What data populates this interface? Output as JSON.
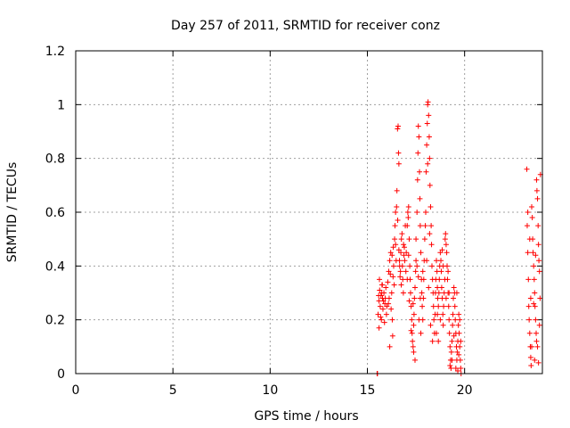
{
  "chart_data": {
    "type": "scatter",
    "title": "Day 257 of 2011, SRMTID for receiver conz",
    "xlabel": "GPS time / hours",
    "ylabel": "SRMTID / TECUs",
    "xlim": [
      0,
      24
    ],
    "ylim": [
      0,
      1.2
    ],
    "xticks": [
      0,
      5,
      10,
      15,
      20
    ],
    "xtick_labels": [
      "0",
      "5",
      "10",
      "15",
      "20"
    ],
    "yticks": [
      0,
      0.2,
      0.4,
      0.6,
      0.8,
      1,
      1.2
    ],
    "ytick_labels": [
      "0",
      "0.2",
      "0.4",
      "0.6",
      "0.8",
      "1",
      "1.2"
    ],
    "grid": true,
    "marker": "+",
    "series": [
      {
        "name": "SRMTID",
        "color": "#ff0000",
        "points": [
          [
            15.5,
            0.0
          ],
          [
            15.52,
            0.0
          ],
          [
            15.55,
            0.22
          ],
          [
            15.6,
            0.27
          ],
          [
            15.63,
            0.31
          ],
          [
            15.66,
            0.25
          ],
          [
            15.7,
            0.29
          ],
          [
            15.72,
            0.2
          ],
          [
            15.75,
            0.33
          ],
          [
            15.78,
            0.28
          ],
          [
            15.8,
            0.24
          ],
          [
            15.85,
            0.3
          ],
          [
            15.88,
            0.19
          ],
          [
            15.9,
            0.26
          ],
          [
            15.95,
            0.32
          ],
          [
            15.98,
            0.22
          ],
          [
            15.6,
            0.17
          ],
          [
            15.62,
            0.35
          ],
          [
            15.68,
            0.21
          ],
          [
            15.74,
            0.3
          ],
          [
            15.82,
            0.27
          ],
          [
            15.92,
            0.28
          ],
          [
            16.0,
            0.25
          ],
          [
            15.58,
            0.29
          ],
          [
            15.77,
            0.33
          ],
          [
            16.05,
            0.34
          ],
          [
            16.1,
            0.38
          ],
          [
            16.15,
            0.42
          ],
          [
            16.2,
            0.45
          ],
          [
            16.25,
            0.3
          ],
          [
            16.28,
            0.2
          ],
          [
            16.3,
            0.14
          ],
          [
            16.35,
            0.4
          ],
          [
            16.4,
            0.5
          ],
          [
            16.45,
            0.48
          ],
          [
            16.48,
            0.42
          ],
          [
            16.12,
            0.28
          ],
          [
            16.18,
            0.37
          ],
          [
            16.22,
            0.24
          ],
          [
            16.32,
            0.36
          ],
          [
            16.38,
            0.33
          ],
          [
            16.08,
            0.26
          ],
          [
            16.27,
            0.44
          ],
          [
            16.42,
            0.55
          ],
          [
            16.15,
            0.1
          ],
          [
            16.33,
            0.47
          ],
          [
            16.45,
            0.6
          ],
          [
            16.5,
            0.62
          ],
          [
            16.52,
            0.68
          ],
          [
            16.55,
            0.91
          ],
          [
            16.58,
            0.92
          ],
          [
            16.6,
            0.82
          ],
          [
            16.62,
            0.78
          ],
          [
            16.65,
            0.42
          ],
          [
            16.7,
            0.38
          ],
          [
            16.72,
            0.45
          ],
          [
            16.75,
            0.5
          ],
          [
            16.78,
            0.52
          ],
          [
            16.8,
            0.4
          ],
          [
            16.82,
            0.35
          ],
          [
            16.85,
            0.3
          ],
          [
            16.88,
            0.44
          ],
          [
            16.9,
            0.47
          ],
          [
            16.92,
            0.42
          ],
          [
            16.95,
            0.55
          ],
          [
            16.98,
            0.38
          ],
          [
            16.62,
            0.46
          ],
          [
            16.68,
            0.36
          ],
          [
            16.74,
            0.33
          ],
          [
            16.86,
            0.48
          ],
          [
            16.56,
            0.57
          ],
          [
            16.66,
            0.4
          ],
          [
            17.0,
            0.45
          ],
          [
            17.05,
            0.55
          ],
          [
            17.08,
            0.6
          ],
          [
            17.1,
            0.58
          ],
          [
            17.12,
            0.62
          ],
          [
            17.15,
            0.5
          ],
          [
            17.18,
            0.4
          ],
          [
            17.2,
            0.35
          ],
          [
            17.22,
            0.3
          ],
          [
            17.25,
            0.25
          ],
          [
            17.28,
            0.2
          ],
          [
            17.3,
            0.15
          ],
          [
            17.32,
            0.12
          ],
          [
            17.35,
            0.1
          ],
          [
            17.38,
            0.18
          ],
          [
            17.4,
            0.22
          ],
          [
            17.42,
            0.28
          ],
          [
            17.45,
            0.32
          ],
          [
            17.48,
            0.38
          ],
          [
            17.5,
            0.42
          ],
          [
            17.05,
            0.35
          ],
          [
            17.15,
            0.27
          ],
          [
            17.25,
            0.16
          ],
          [
            17.35,
            0.26
          ],
          [
            17.45,
            0.05
          ],
          [
            17.38,
            0.08
          ],
          [
            17.12,
            0.44
          ],
          [
            17.5,
            0.5
          ],
          [
            17.55,
            0.6
          ],
          [
            17.58,
            0.72
          ],
          [
            17.6,
            0.82
          ],
          [
            17.62,
            0.92
          ],
          [
            17.65,
            0.88
          ],
          [
            17.68,
            0.75
          ],
          [
            17.7,
            0.65
          ],
          [
            17.72,
            0.55
          ],
          [
            17.75,
            0.45
          ],
          [
            17.78,
            0.35
          ],
          [
            17.8,
            0.3
          ],
          [
            17.82,
            0.25
          ],
          [
            17.85,
            0.2
          ],
          [
            17.88,
            0.28
          ],
          [
            17.9,
            0.35
          ],
          [
            17.92,
            0.42
          ],
          [
            17.95,
            0.5
          ],
          [
            17.98,
            0.55
          ],
          [
            17.55,
            0.4
          ],
          [
            17.65,
            0.2
          ],
          [
            17.75,
            0.15
          ],
          [
            17.85,
            0.38
          ],
          [
            17.62,
            0.36
          ],
          [
            17.72,
            0.28
          ],
          [
            18.0,
            0.6
          ],
          [
            18.02,
            0.75
          ],
          [
            18.05,
            0.85
          ],
          [
            18.08,
            0.93
          ],
          [
            18.1,
            1.0
          ],
          [
            18.12,
            1.01
          ],
          [
            18.15,
            0.96
          ],
          [
            18.18,
            0.88
          ],
          [
            18.2,
            0.8
          ],
          [
            18.22,
            0.7
          ],
          [
            18.25,
            0.62
          ],
          [
            18.28,
            0.55
          ],
          [
            18.3,
            0.48
          ],
          [
            18.32,
            0.4
          ],
          [
            18.35,
            0.35
          ],
          [
            18.38,
            0.3
          ],
          [
            18.4,
            0.25
          ],
          [
            18.42,
            0.2
          ],
          [
            18.45,
            0.15
          ],
          [
            18.48,
            0.22
          ],
          [
            18.05,
            0.42
          ],
          [
            18.15,
            0.32
          ],
          [
            18.25,
            0.18
          ],
          [
            18.35,
            0.12
          ],
          [
            18.2,
            0.52
          ],
          [
            18.1,
            0.78
          ],
          [
            18.5,
            0.3
          ],
          [
            18.52,
            0.35
          ],
          [
            18.55,
            0.42
          ],
          [
            18.58,
            0.38
          ],
          [
            18.6,
            0.32
          ],
          [
            18.62,
            0.28
          ],
          [
            18.65,
            0.25
          ],
          [
            18.68,
            0.3
          ],
          [
            18.7,
            0.35
          ],
          [
            18.72,
            0.4
          ],
          [
            18.75,
            0.45
          ],
          [
            18.78,
            0.42
          ],
          [
            18.8,
            0.38
          ],
          [
            18.82,
            0.32
          ],
          [
            18.85,
            0.28
          ],
          [
            18.88,
            0.22
          ],
          [
            18.9,
            0.18
          ],
          [
            18.92,
            0.25
          ],
          [
            18.95,
            0.3
          ],
          [
            18.98,
            0.35
          ],
          [
            18.55,
            0.15
          ],
          [
            18.65,
            0.12
          ],
          [
            18.75,
            0.2
          ],
          [
            18.85,
            0.46
          ],
          [
            18.6,
            0.22
          ],
          [
            18.9,
            0.4
          ],
          [
            19.0,
            0.5
          ],
          [
            19.02,
            0.52
          ],
          [
            19.05,
            0.48
          ],
          [
            19.08,
            0.45
          ],
          [
            19.1,
            0.4
          ],
          [
            19.12,
            0.35
          ],
          [
            19.15,
            0.3
          ],
          [
            19.18,
            0.25
          ],
          [
            19.2,
            0.2
          ],
          [
            19.22,
            0.15
          ],
          [
            19.25,
            0.1
          ],
          [
            19.28,
            0.05
          ],
          [
            19.3,
            0.02
          ],
          [
            19.32,
            0.08
          ],
          [
            19.35,
            0.12
          ],
          [
            19.38,
            0.18
          ],
          [
            19.4,
            0.22
          ],
          [
            19.42,
            0.28
          ],
          [
            19.45,
            0.32
          ],
          [
            19.48,
            0.3
          ],
          [
            19.05,
            0.28
          ],
          [
            19.15,
            0.38
          ],
          [
            19.25,
            0.03
          ],
          [
            19.35,
            0.05
          ],
          [
            19.45,
            0.14
          ],
          [
            19.2,
            0.3
          ],
          [
            19.5,
            0.25
          ],
          [
            19.52,
            0.2
          ],
          [
            19.55,
            0.15
          ],
          [
            19.58,
            0.1
          ],
          [
            19.6,
            0.05
          ],
          [
            19.62,
            0.08
          ],
          [
            19.65,
            0.12
          ],
          [
            19.68,
            0.18
          ],
          [
            19.7,
            0.22
          ],
          [
            19.72,
            0.15
          ],
          [
            19.75,
            0.1
          ],
          [
            19.78,
            0.05
          ],
          [
            19.8,
            0.02
          ],
          [
            19.82,
            0.0
          ],
          [
            19.55,
            0.02
          ],
          [
            19.65,
            0.01
          ],
          [
            19.7,
            0.07
          ],
          [
            19.6,
            0.3
          ],
          [
            19.75,
            0.2
          ],
          [
            19.8,
            0.12
          ],
          [
            23.2,
            0.76
          ],
          [
            23.22,
            0.55
          ],
          [
            23.25,
            0.45
          ],
          [
            23.28,
            0.35
          ],
          [
            23.3,
            0.25
          ],
          [
            23.32,
            0.2
          ],
          [
            23.35,
            0.15
          ],
          [
            23.38,
            0.1
          ],
          [
            23.4,
            0.06
          ],
          [
            23.42,
            0.03
          ],
          [
            23.45,
            0.62
          ],
          [
            23.48,
            0.58
          ],
          [
            23.5,
            0.5
          ],
          [
            23.52,
            0.45
          ],
          [
            23.55,
            0.4
          ],
          [
            23.58,
            0.35
          ],
          [
            23.6,
            0.3
          ],
          [
            23.62,
            0.25
          ],
          [
            23.65,
            0.2
          ],
          [
            23.68,
            0.15
          ],
          [
            23.7,
            0.72
          ],
          [
            23.72,
            0.68
          ],
          [
            23.75,
            0.65
          ],
          [
            23.78,
            0.55
          ],
          [
            23.8,
            0.48
          ],
          [
            23.82,
            0.42
          ],
          [
            23.85,
            0.38
          ],
          [
            23.88,
            0.28
          ],
          [
            23.75,
            0.1
          ],
          [
            23.8,
            0.04
          ],
          [
            23.25,
            0.6
          ],
          [
            23.35,
            0.5
          ],
          [
            23.45,
            0.1
          ],
          [
            23.55,
            0.26
          ],
          [
            23.65,
            0.44
          ],
          [
            23.85,
            0.18
          ],
          [
            23.9,
            0.74
          ],
          [
            23.6,
            0.05
          ],
          [
            23.4,
            0.28
          ],
          [
            23.7,
            0.12
          ]
        ]
      }
    ]
  }
}
